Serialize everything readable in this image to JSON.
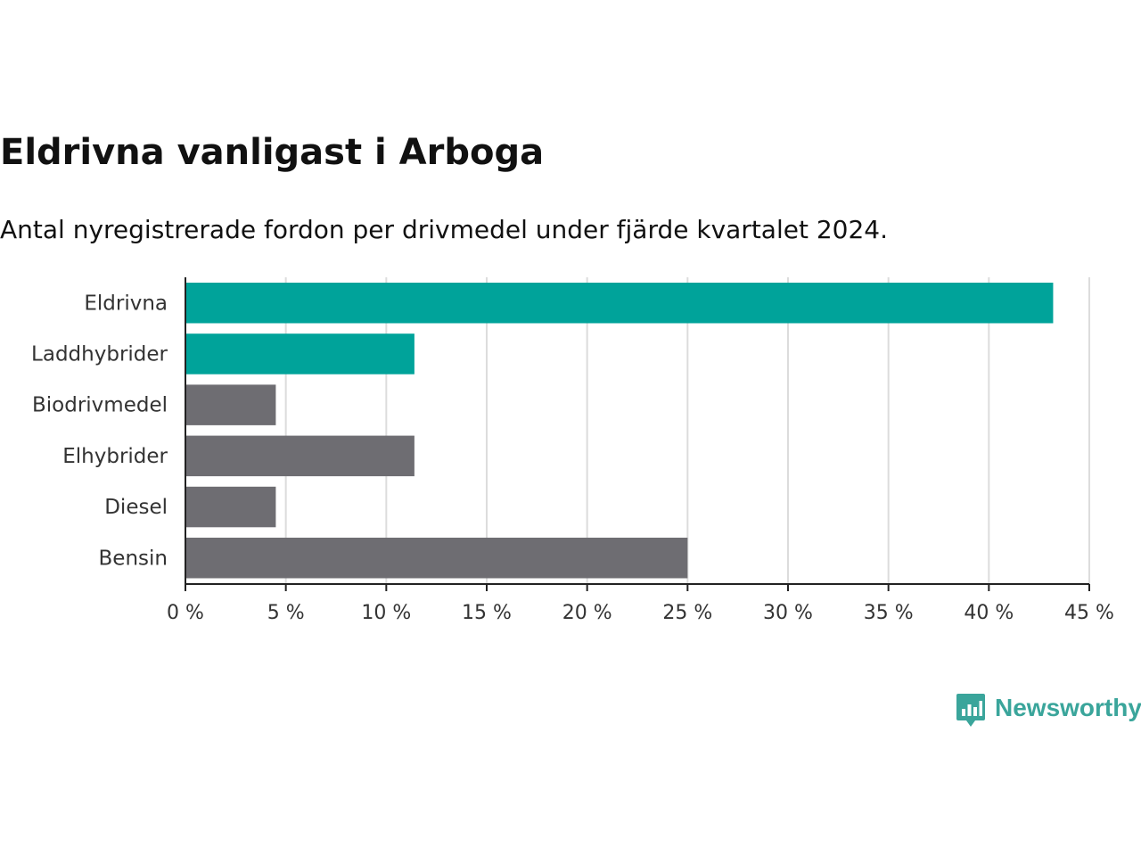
{
  "chart_data": {
    "type": "bar",
    "orientation": "horizontal",
    "title": "Eldrivna vanligast i Arboga",
    "subtitle": "Antal nyregistrerade fordon per drivmedel under fjärde kvartalet 2024.",
    "xlabel": "",
    "ylabel": "",
    "categories": [
      "Eldrivna",
      "Laddhybrider",
      "Biodrivmedel",
      "Elhybrider",
      "Diesel",
      "Bensin"
    ],
    "values": [
      43.2,
      11.4,
      4.5,
      11.4,
      4.5,
      25.0
    ],
    "bar_colors": [
      "#00a39a",
      "#00a39a",
      "#6e6d72",
      "#6e6d72",
      "#6e6d72",
      "#6e6d72"
    ],
    "xlim": [
      0,
      45
    ],
    "xticks": [
      0,
      5,
      10,
      15,
      20,
      25,
      30,
      35,
      40,
      45
    ],
    "xtick_labels": [
      "0 %",
      "5 %",
      "10 %",
      "15 %",
      "20 %",
      "25 %",
      "30 %",
      "35 %",
      "40 %",
      "45 %"
    ],
    "grid": "vertical",
    "legend": "none"
  },
  "brand": {
    "name": "Newsworthy",
    "icon": "newsworthy-logo-icon",
    "color": "#3aa59b"
  }
}
